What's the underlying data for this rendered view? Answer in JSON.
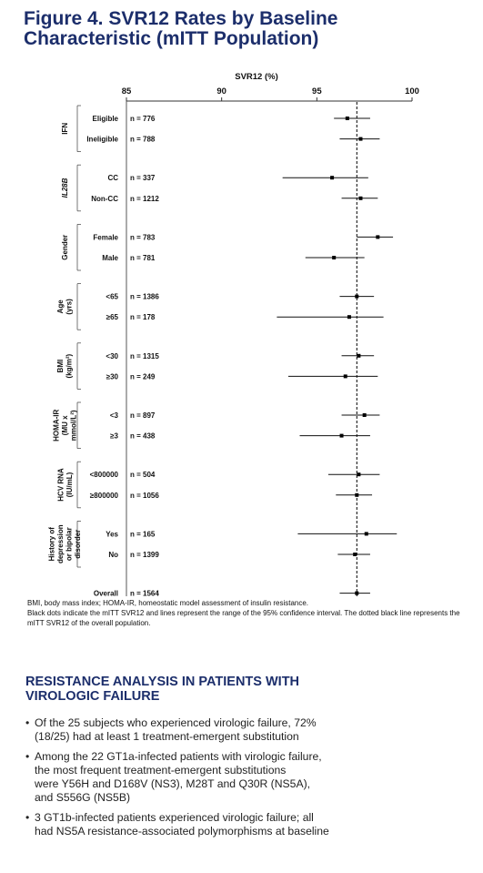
{
  "figure": {
    "title_line1": "Figure 4. SVR12 Rates by Baseline",
    "title_line2": "Characteristic (mITT Population)"
  },
  "chart_data": {
    "type": "forest",
    "xlabel": "SVR12 (%)",
    "xlim": [
      85,
      100
    ],
    "xticks": [
      85,
      90,
      95,
      100
    ],
    "reference_value": 97.1,
    "reference_line": "dotted black",
    "marker_color": "#000000",
    "groups": [
      {
        "label": [
          "IFN"
        ],
        "italic": false,
        "rows": [
          {
            "label": "Eligible",
            "n": "n = 776",
            "value": 96.6,
            "ci": [
              95.9,
              97.8
            ]
          },
          {
            "label": "Ineligible",
            "n": "n = 788",
            "value": 97.3,
            "ci": [
              96.2,
              98.3
            ]
          }
        ]
      },
      {
        "label": [
          "IL28B"
        ],
        "italic": true,
        "rows": [
          {
            "label": "CC",
            "n": "n = 337",
            "value": 95.8,
            "ci": [
              93.2,
              97.7
            ]
          },
          {
            "label": "Non-CC",
            "n": "n = 1212",
            "value": 97.3,
            "ci": [
              96.3,
              98.2
            ]
          }
        ]
      },
      {
        "label": [
          "Gender"
        ],
        "italic": false,
        "rows": [
          {
            "label": "Female",
            "n": "n = 783",
            "value": 98.2,
            "ci": [
              97.1,
              99.0
            ]
          },
          {
            "label": "Male",
            "n": "n = 781",
            "value": 95.9,
            "ci": [
              94.4,
              97.5
            ]
          }
        ]
      },
      {
        "label": [
          "Age",
          "(yrs)"
        ],
        "italic": false,
        "rows": [
          {
            "label": "<65",
            "n": "n = 1386",
            "value": 97.1,
            "ci": [
              96.2,
              98.0
            ]
          },
          {
            "label": "≥65",
            "n": "n = 178",
            "value": 96.7,
            "ci": [
              92.9,
              98.5
            ]
          }
        ]
      },
      {
        "label": [
          "BMI",
          "(kg/m²)"
        ],
        "italic": false,
        "rows": [
          {
            "label": "<30",
            "n": "n = 1315",
            "value": 97.2,
            "ci": [
              96.3,
              98.0
            ]
          },
          {
            "label": "≥30",
            "n": "n = 249",
            "value": 96.5,
            "ci": [
              93.5,
              98.2
            ]
          }
        ]
      },
      {
        "label": [
          "HOMA-IR",
          "(MU x",
          "mmol/L²)"
        ],
        "italic": false,
        "rows": [
          {
            "label": "<3",
            "n": "n = 897",
            "value": 97.5,
            "ci": [
              96.3,
              98.3
            ]
          },
          {
            "label": "≥3",
            "n": "n = 438",
            "value": 96.3,
            "ci": [
              94.1,
              97.8
            ]
          }
        ]
      },
      {
        "label": [
          "HCV RNA",
          "(IU/mL)"
        ],
        "italic": false,
        "rows": [
          {
            "label": "<800000",
            "n": "n = 504",
            "value": 97.2,
            "ci": [
              95.6,
              98.3
            ]
          },
          {
            "label": "≥800000",
            "n": "n = 1056",
            "value": 97.1,
            "ci": [
              96.0,
              97.9
            ]
          }
        ]
      },
      {
        "label": [
          "History of",
          "depression",
          "or bipolar",
          "disorder"
        ],
        "italic": false,
        "rows": [
          {
            "label": "Yes",
            "n": "n = 165",
            "value": 97.6,
            "ci": [
              94.0,
              99.2
            ]
          },
          {
            "label": "No",
            "n": "n = 1399",
            "value": 97.0,
            "ci": [
              96.1,
              97.8
            ]
          }
        ]
      },
      {
        "label": [],
        "italic": false,
        "rows": [
          {
            "label": "Overall",
            "n": "n = 1564",
            "value": 97.1,
            "ci": [
              96.2,
              97.8
            ]
          }
        ]
      }
    ]
  },
  "footnote": {
    "line1": "BMI, body mass index; HOMA-IR, homeostatic model assessment of insulin resistance.",
    "line2": "Black dots indicate the mITT SVR12 and lines represent the range of the 95% confidence interval. The dotted black line represents the mITT SVR12 of the overall population."
  },
  "section": {
    "title_line1": "RESISTANCE ANALYSIS IN PATIENTS WITH",
    "title_line2": "VIROLOGIC FAILURE"
  },
  "bullets": [
    {
      "lines": [
        "Of the 25 subjects who experienced virologic failure, 72%",
        "(18/25) had at least 1 treatment-emergent substitution"
      ]
    },
    {
      "lines": [
        "Among the 22 GT1a-infected patients with virologic failure,",
        "the most frequent treatment-emergent substitutions",
        "were Y56H and D168V (NS3), M28T and Q30R (NS5A),",
        "and S556G (NS5B)"
      ]
    },
    {
      "lines": [
        "3 GT1b-infected patients experienced virologic failure; all",
        "had NS5A resistance-associated polymorphisms at baseline"
      ]
    }
  ]
}
